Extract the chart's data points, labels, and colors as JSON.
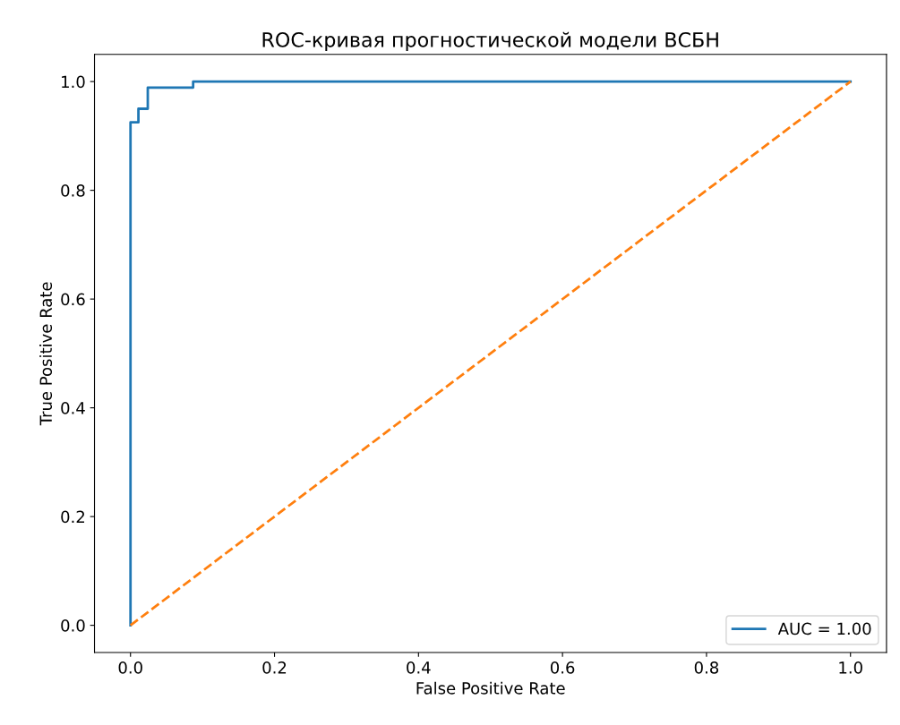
{
  "chart_data": {
    "type": "line",
    "title": "ROC-кривая прогностической модели ВСБН",
    "xlabel": "False Positive Rate",
    "ylabel": "True Positive Rate",
    "series": [
      {
        "name": "AUC = 1.00",
        "type": "step",
        "color": "#1f77b4",
        "x": [
          0,
          0,
          0.011,
          0.024,
          0.087,
          1.0
        ],
        "values": [
          0,
          0.925,
          0.95,
          0.989,
          1.0,
          1.0
        ],
        "line_style": "solid"
      },
      {
        "color": "#ff7f0e",
        "x": [
          0,
          1
        ],
        "values": [
          0,
          1
        ],
        "line_style": "dashed"
      }
    ],
    "xlim": [
      -0.05,
      1.05
    ],
    "ylim": [
      -0.05,
      1.05
    ],
    "xticks": [
      {
        "value": 0,
        "label": "0.0"
      },
      {
        "value": 0.2,
        "label": "0.2"
      },
      {
        "value": 0.4,
        "label": "0.4"
      },
      {
        "value": 0.6,
        "label": "0.6"
      },
      {
        "value": 0.8,
        "label": "0.8"
      },
      {
        "value": 1,
        "label": "1.0"
      }
    ],
    "yticks": [
      {
        "value": 0,
        "label": "0.0"
      },
      {
        "value": 0.2,
        "label": "0.2"
      },
      {
        "value": 0.4,
        "label": "0.4"
      },
      {
        "value": 0.6,
        "label": "0.6"
      },
      {
        "value": 0.8,
        "label": "0.8"
      },
      {
        "value": 1,
        "label": "1.0"
      }
    ],
    "grid": false,
    "legend": "lower right"
  }
}
